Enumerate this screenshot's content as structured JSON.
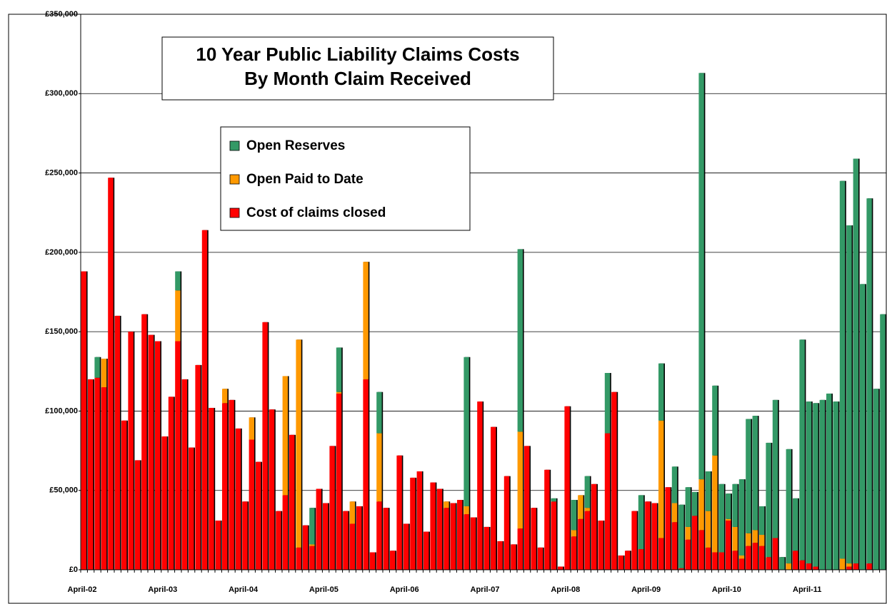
{
  "chart_data": {
    "type": "stacked_bar",
    "title": [
      "10 Year Public Liability Claims Costs",
      "By Month Claim Received"
    ],
    "categories": [
      "April-02",
      null,
      null,
      null,
      null,
      null,
      null,
      null,
      null,
      null,
      null,
      null,
      "April-03",
      null,
      null,
      null,
      null,
      null,
      null,
      null,
      null,
      null,
      null,
      null,
      "April-04",
      null,
      null,
      null,
      null,
      null,
      null,
      null,
      null,
      null,
      null,
      null,
      "April-05",
      null,
      null,
      null,
      null,
      null,
      null,
      null,
      null,
      null,
      null,
      null,
      "April-06",
      null,
      null,
      null,
      null,
      null,
      null,
      null,
      null,
      null,
      null,
      null,
      "April-07",
      null,
      null,
      null,
      null,
      null,
      null,
      null,
      null,
      null,
      null,
      null,
      "April-08",
      null,
      null,
      null,
      null,
      null,
      null,
      null,
      null,
      null,
      null,
      null,
      "April-09",
      null,
      null,
      null,
      null,
      null,
      null,
      null,
      null,
      null,
      null,
      null,
      "April-10",
      null,
      null,
      null,
      null,
      null,
      null,
      null,
      null,
      null,
      null,
      null,
      "April-11",
      null,
      null,
      null,
      null,
      null,
      null,
      null,
      null,
      null,
      null,
      null
    ],
    "series": [
      {
        "name": "Cost of claims closed",
        "color": "#ff0000",
        "values": [
          188000,
          120000,
          121000,
          115000,
          247000,
          160000,
          94000,
          150000,
          69000,
          161000,
          148000,
          144000,
          84000,
          109000,
          144000,
          120000,
          77000,
          129000,
          214000,
          102000,
          31000,
          105000,
          107000,
          89000,
          43000,
          82000,
          68000,
          156000,
          101000,
          37000,
          47000,
          85000,
          14000,
          28000,
          15000,
          51000,
          42000,
          78000,
          111000,
          37000,
          29000,
          40000,
          120000,
          11000,
          43000,
          39000,
          12000,
          72000,
          29000,
          58000,
          62000,
          24000,
          55000,
          51000,
          39000,
          42000,
          44000,
          35000,
          33000,
          106000,
          27000,
          90000,
          18000,
          59000,
          16000,
          26000,
          78000,
          39000,
          14000,
          63000,
          43000,
          2000,
          103000,
          21000,
          32000,
          37000,
          54000,
          31000,
          86000,
          112000,
          9000,
          12000,
          37000,
          13000,
          43000,
          42000,
          20000,
          52000,
          30000,
          1000,
          19000,
          34000,
          25000,
          14000,
          11000,
          11000,
          31000,
          12000,
          7000,
          15000,
          17000,
          15000,
          8000,
          20000,
          0,
          0,
          12000,
          6000,
          4000,
          2000,
          0,
          0,
          0,
          0,
          2000,
          4000,
          0,
          4000,
          0,
          0
        ]
      },
      {
        "name": "Open Paid to Date",
        "color": "#ff9900",
        "values": [
          0,
          0,
          0,
          18000,
          0,
          0,
          0,
          0,
          0,
          0,
          0,
          0,
          0,
          0,
          32000,
          0,
          0,
          0,
          0,
          0,
          0,
          9000,
          0,
          0,
          0,
          14000,
          0,
          0,
          0,
          0,
          75000,
          0,
          131000,
          0,
          1000,
          0,
          0,
          0,
          1000,
          0,
          14000,
          0,
          74000,
          0,
          43000,
          0,
          0,
          0,
          0,
          0,
          0,
          0,
          0,
          0,
          4000,
          0,
          0,
          5000,
          0,
          0,
          0,
          0,
          0,
          0,
          0,
          61000,
          0,
          0,
          0,
          0,
          0,
          0,
          0,
          4000,
          15000,
          2000,
          0,
          0,
          0,
          0,
          0,
          0,
          0,
          0,
          0,
          0,
          74000,
          0,
          12000,
          0,
          8000,
          0,
          32000,
          23000,
          61000,
          0,
          1000,
          15000,
          2000,
          8000,
          8000,
          7000,
          0,
          0,
          0,
          4000,
          0,
          0,
          0,
          0,
          0,
          0,
          0,
          7000,
          2000,
          0,
          0,
          0,
          0,
          0
        ]
      },
      {
        "name": "Open Reserves",
        "color": "#339966",
        "values": [
          0,
          0,
          13000,
          0,
          0,
          0,
          0,
          0,
          0,
          0,
          0,
          0,
          0,
          0,
          12000,
          0,
          0,
          0,
          0,
          0,
          0,
          0,
          0,
          0,
          0,
          0,
          0,
          0,
          0,
          0,
          0,
          0,
          0,
          0,
          23000,
          0,
          0,
          0,
          28000,
          0,
          0,
          0,
          0,
          0,
          26000,
          0,
          0,
          0,
          0,
          0,
          0,
          0,
          0,
          0,
          0,
          0,
          0,
          94000,
          0,
          0,
          0,
          0,
          0,
          0,
          0,
          115000,
          0,
          0,
          0,
          0,
          2000,
          0,
          0,
          19000,
          0,
          20000,
          0,
          0,
          38000,
          0,
          0,
          0,
          0,
          34000,
          0,
          0,
          36000,
          0,
          23000,
          40000,
          25000,
          15000,
          256000,
          25000,
          44000,
          43000,
          16000,
          27000,
          48000,
          72000,
          72000,
          18000,
          72000,
          87000,
          8000,
          72000,
          33000,
          139000,
          102000,
          103000,
          107000,
          111000,
          106000,
          238000,
          213000,
          255000,
          180000,
          230000,
          114000,
          161000
        ]
      }
    ],
    "ylim": [
      0,
      350000
    ],
    "yticks": [
      {
        "value": 0,
        "label": "£0"
      },
      {
        "value": 50000,
        "label": "£50,000"
      },
      {
        "value": 100000,
        "label": "£100,000"
      },
      {
        "value": 150000,
        "label": "£150,000"
      },
      {
        "value": 200000,
        "label": "£200,000"
      },
      {
        "value": 250000,
        "label": "£250,000"
      },
      {
        "value": 300000,
        "label": "£300,000"
      },
      {
        "value": 350000,
        "label": "£350,000"
      }
    ],
    "grid": true
  }
}
